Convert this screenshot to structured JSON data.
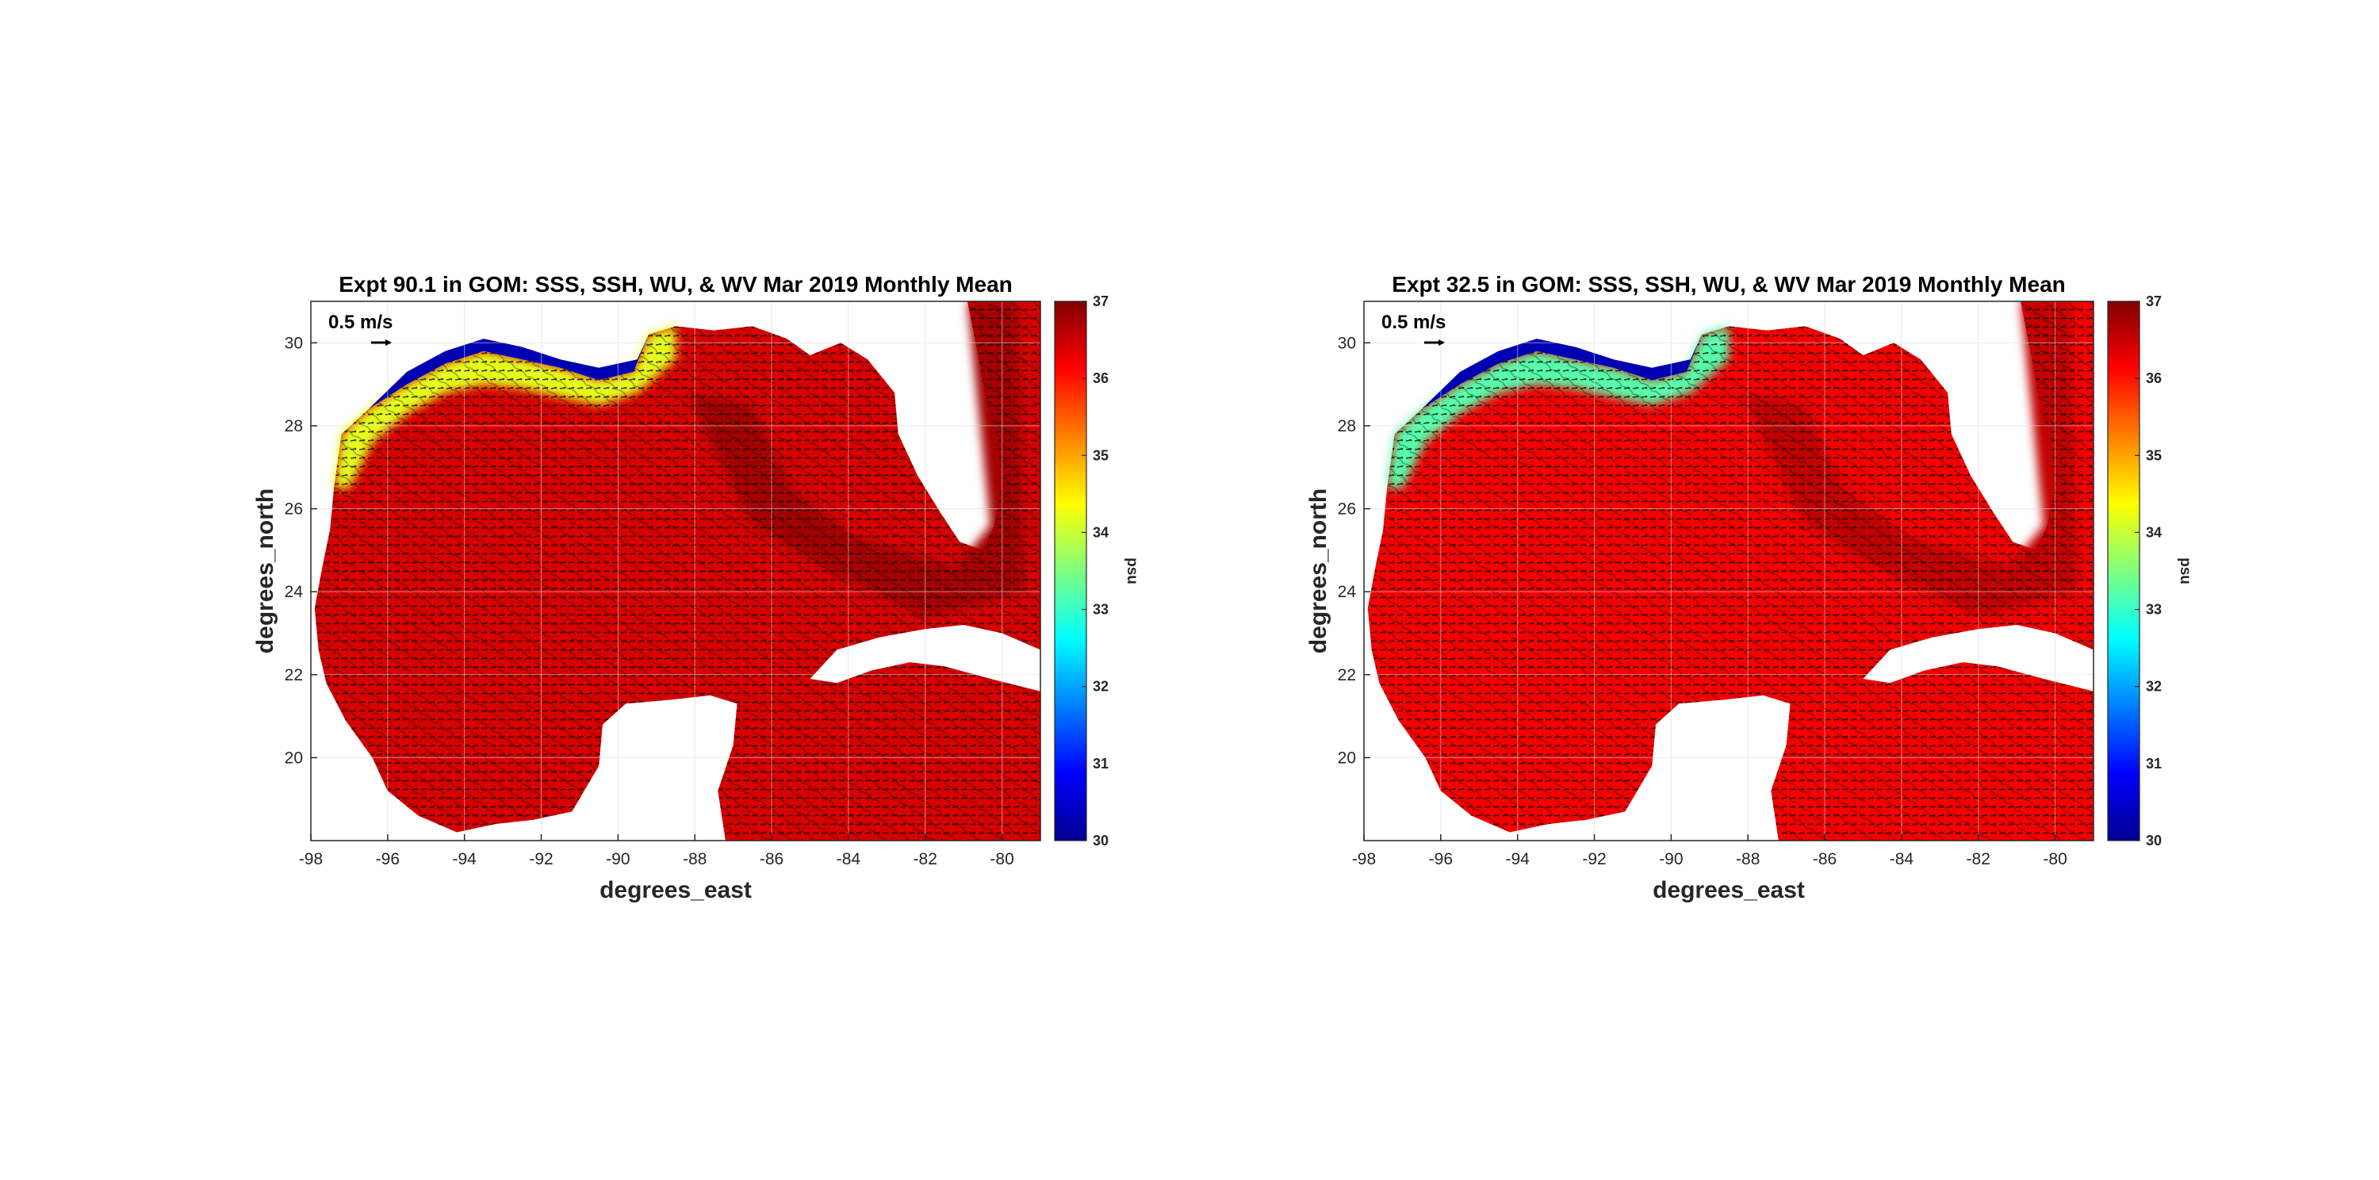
{
  "chart_data": [
    {
      "type": "heatmap",
      "title": "Expt 90.1 in GOM: SSS, SSH, WU, & WV Mar 2019 Monthly Mean",
      "xlabel": "degrees_east",
      "ylabel": "degrees_north",
      "xlim": [
        -98,
        -79
      ],
      "ylim": [
        18,
        31
      ],
      "xticks": [
        -98,
        -96,
        -94,
        -92,
        -90,
        -88,
        -86,
        -84,
        -82,
        -80
      ],
      "yticks": [
        20,
        22,
        24,
        26,
        28,
        30
      ],
      "grid": true,
      "colorbar": {
        "label": "psu",
        "min": 30,
        "max": 37,
        "ticks": [
          30,
          31,
          32,
          33,
          34,
          35,
          36,
          37
        ],
        "colormap": "jet"
      },
      "vector_scale_label": "0.5 m/s",
      "coastal_salinity_psu": 33.5,
      "open_gulf_salinity_psu": 36.4
    },
    {
      "type": "heatmap",
      "title": "Expt 32.5 in GOM: SSS, SSH, WU, & WV Mar 2019 Monthly Mean",
      "xlabel": "degrees_east",
      "ylabel": "degrees_north",
      "xlim": [
        -98,
        -79
      ],
      "ylim": [
        18,
        31
      ],
      "xticks": [
        -98,
        -96,
        -94,
        -92,
        -90,
        -88,
        -86,
        -84,
        -82,
        -80
      ],
      "yticks": [
        20,
        22,
        24,
        26,
        28,
        30
      ],
      "grid": true,
      "colorbar": {
        "label": "psu",
        "min": 30,
        "max": 37,
        "ticks": [
          30,
          31,
          32,
          33,
          34,
          35,
          36,
          37
        ],
        "colormap": "jet"
      },
      "vector_scale_label": "0.5 m/s",
      "coastal_salinity_psu": 32.5,
      "open_gulf_salinity_psu": 36.2
    }
  ],
  "colors": {
    "land": "#ffffff",
    "open_gulf": "#e8230f",
    "deep_red": "#a10c07",
    "vectors": "#000000",
    "grid": "#dcdcdc"
  }
}
